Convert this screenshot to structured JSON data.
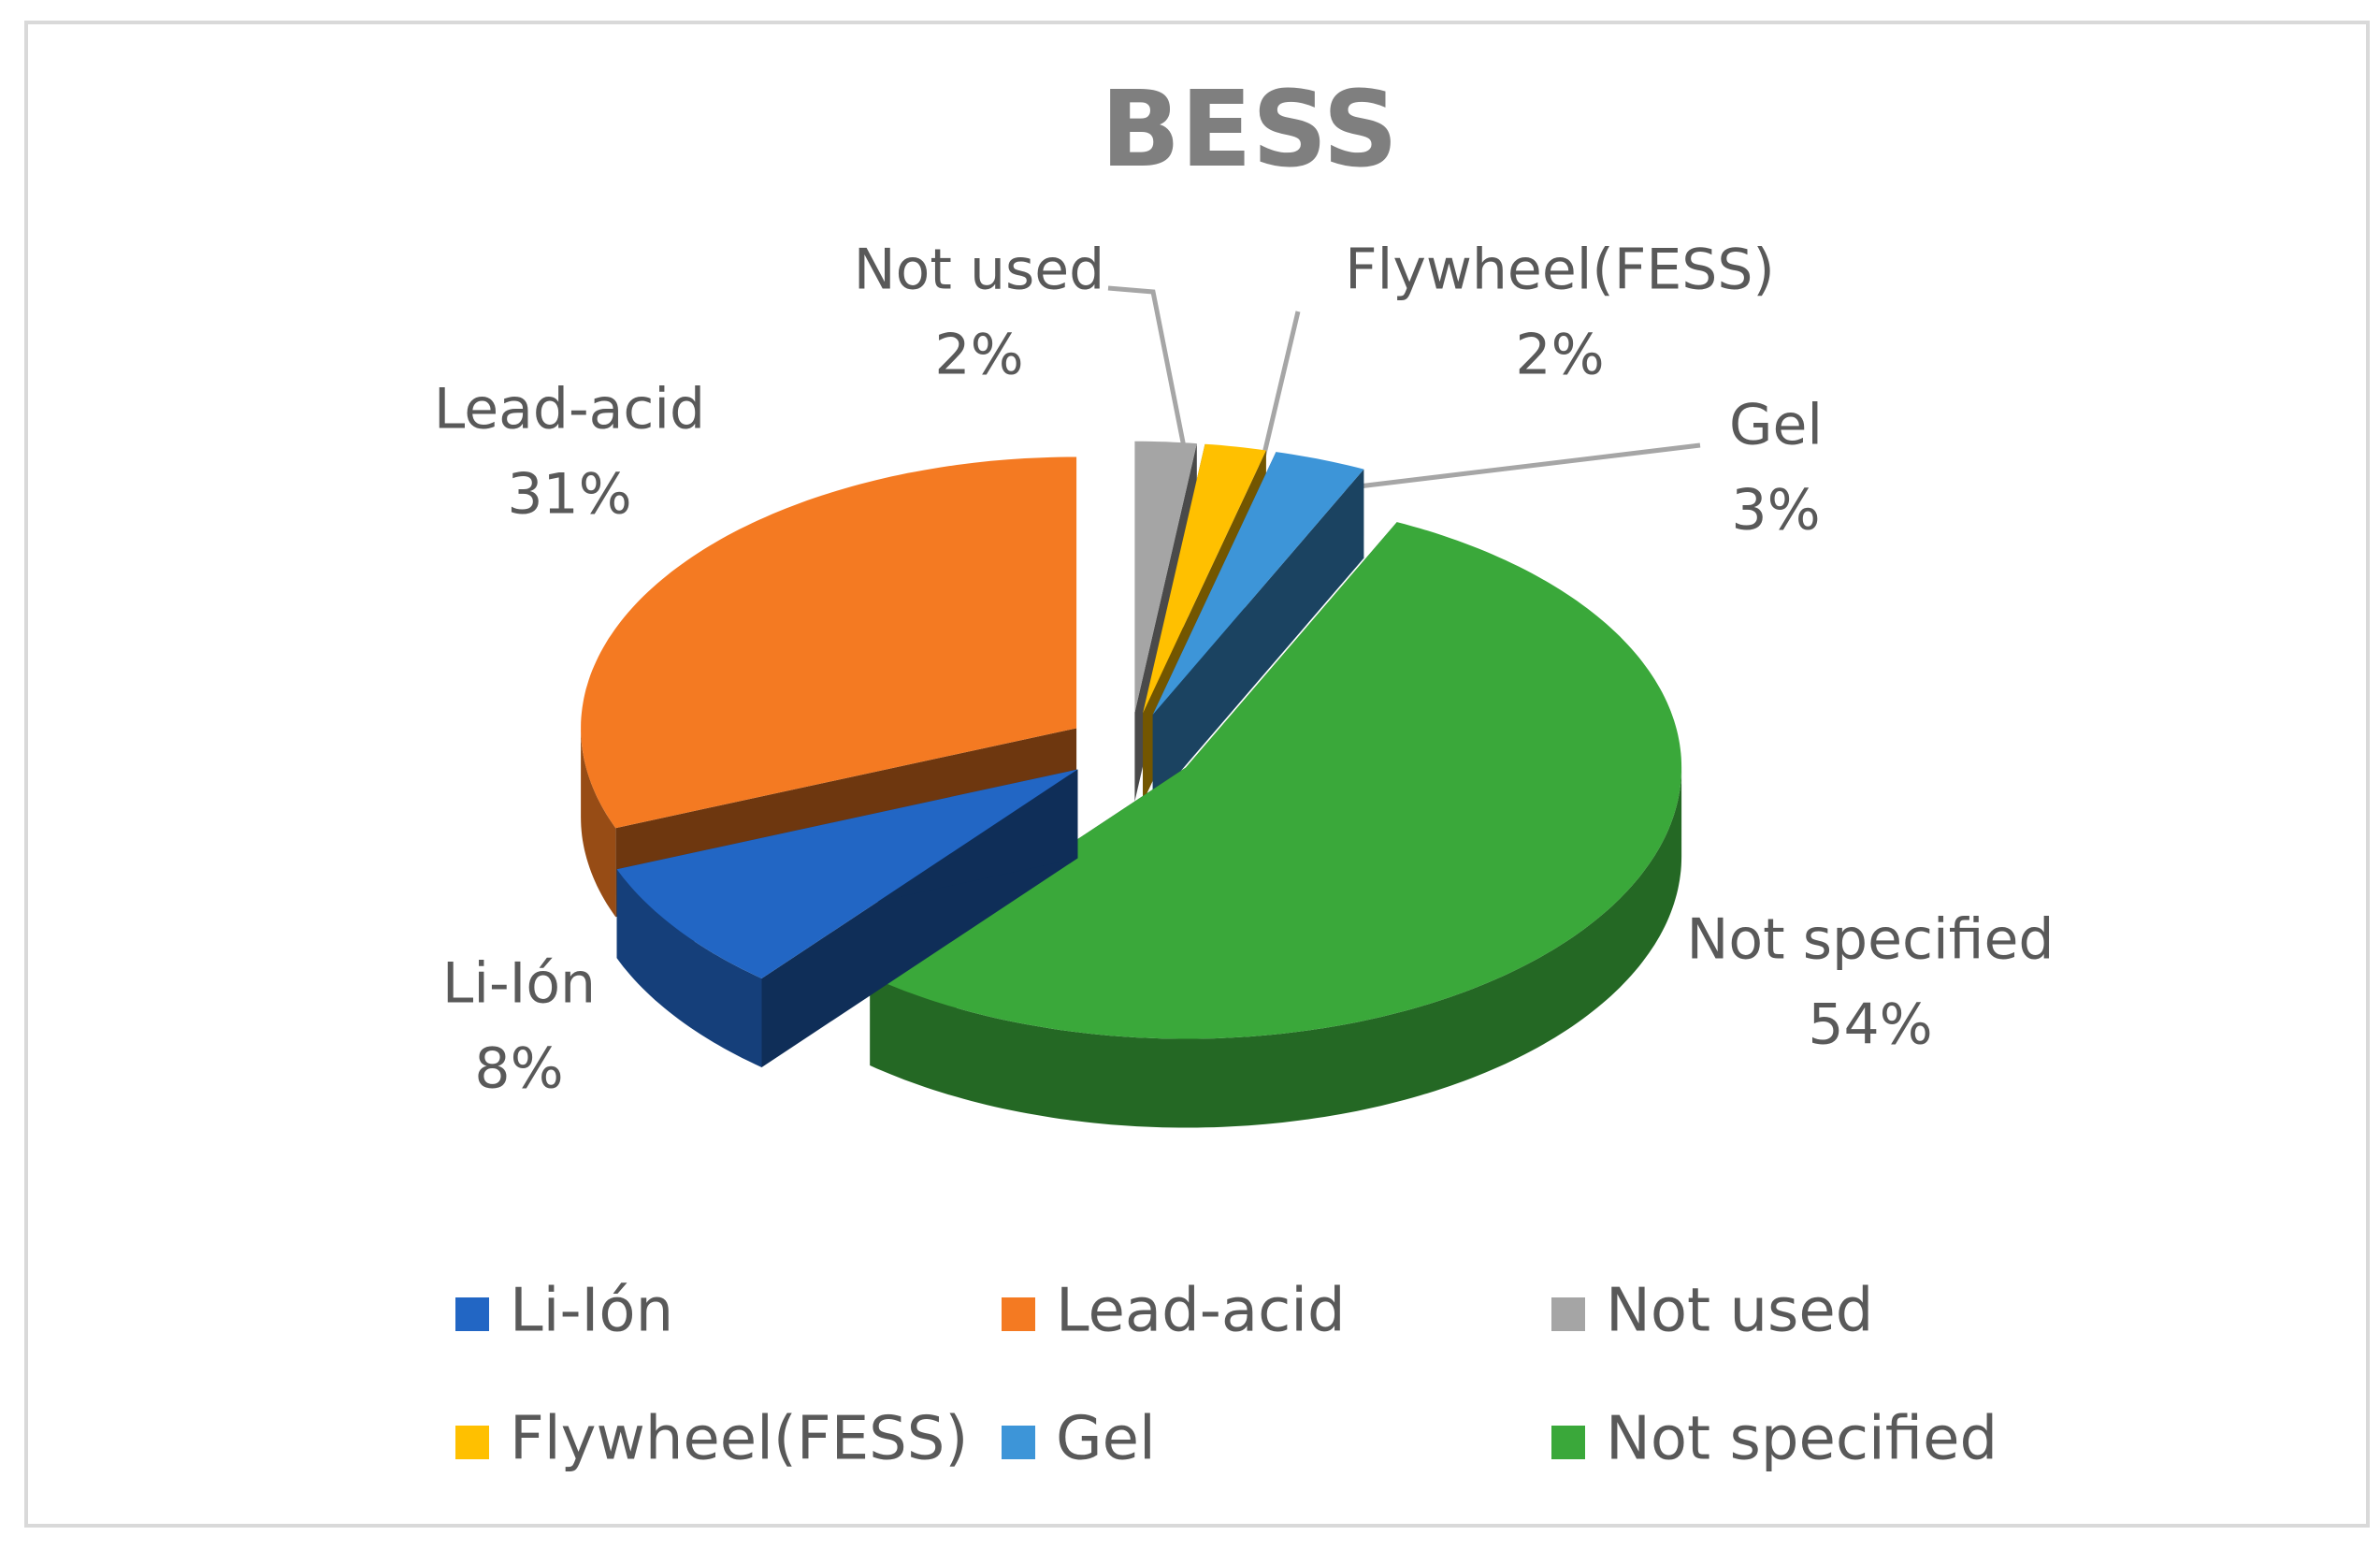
{
  "chart_data": {
    "type": "pie",
    "title": "BESS",
    "categories": [
      "Li-Ión",
      "Lead-acid",
      "Not used",
      "Flywheel(FESS)",
      "Gel",
      "Not specified"
    ],
    "values": [
      8,
      31,
      2,
      2,
      3,
      54
    ],
    "value_labels": [
      "8%",
      "31%",
      "2%",
      "2%",
      "3%",
      "54%"
    ],
    "colors": [
      "#2266c4",
      "#f47a22",
      "#a5a5a5",
      "#ffc000",
      "#3d95d8",
      "#3aa83a"
    ],
    "legend": "bottom"
  }
}
